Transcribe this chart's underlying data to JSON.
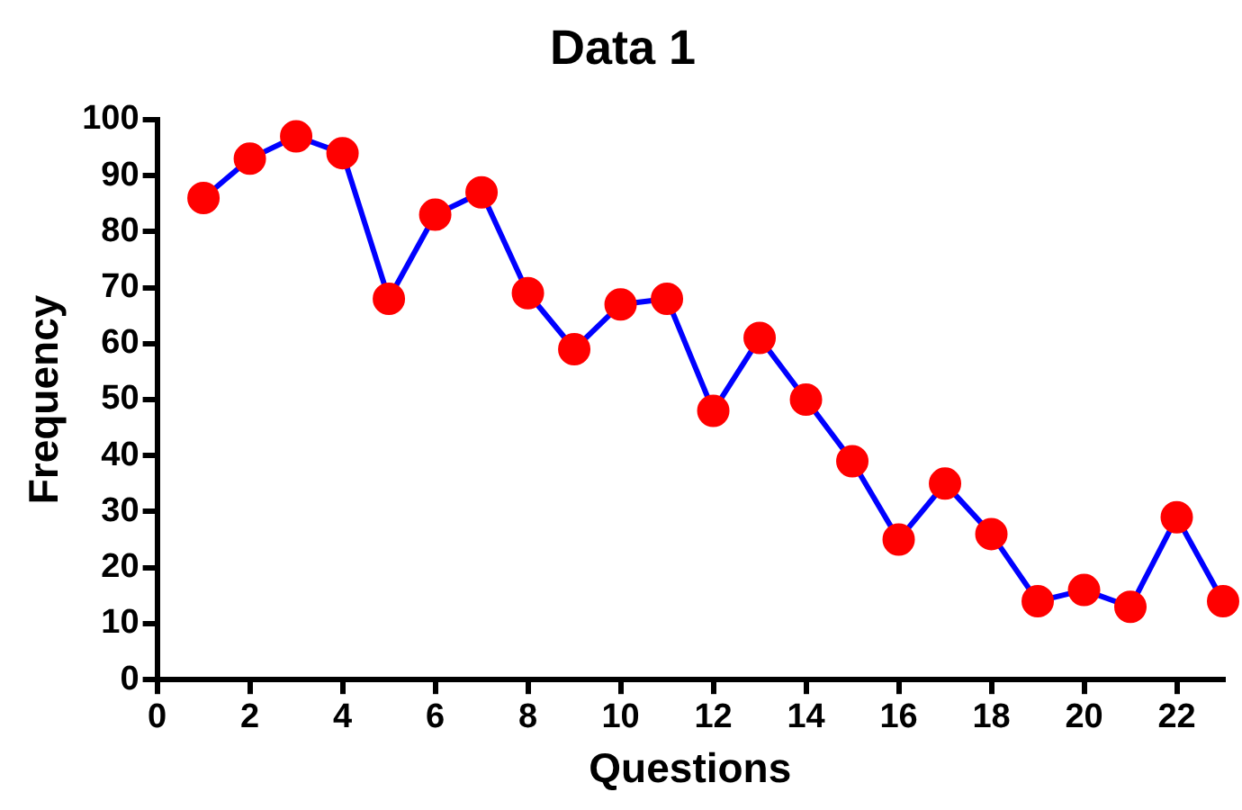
{
  "chart_data": {
    "type": "line",
    "title": "Data 1",
    "xlabel": "Questions",
    "ylabel": "Frequency",
    "x": [
      1,
      2,
      3,
      4,
      5,
      6,
      7,
      8,
      9,
      10,
      11,
      12,
      13,
      14,
      15,
      16,
      17,
      18,
      19,
      20,
      21,
      22,
      23
    ],
    "series": [
      {
        "color": "#0000ff",
        "colors": [
          "#ff0000",
          "#ff0000",
          "#ff0000",
          "#ff0000",
          "#ff0000",
          "#ff0000",
          "#ff0000",
          "#ff0000",
          "#ff0000",
          "#ff0000",
          "#ff0000",
          "#ff0000",
          "#ff0000",
          "#ff0000",
          "#ff0000",
          "#ff0000",
          "#ff0000",
          "#ff0000",
          "#ff0000",
          "#ff0000",
          "#ff0000",
          "#ff0000",
          "#ff0000"
        ],
        "values": [
          86,
          93,
          97,
          94,
          68,
          83,
          87,
          69,
          59,
          67,
          68,
          48,
          61,
          50,
          39,
          25,
          35,
          26,
          14,
          16,
          13,
          29,
          14
        ]
      }
    ],
    "xlim": [
      0,
      23
    ],
    "xticks": [
      0,
      2,
      4,
      6,
      8,
      10,
      12,
      14,
      16,
      18,
      20,
      22
    ],
    "ylim": [
      0,
      100
    ],
    "yticks": [
      0,
      10,
      20,
      30,
      40,
      50,
      60,
      70,
      80,
      90,
      100
    ],
    "grid": false,
    "legend": false,
    "marker": "circle",
    "line_style": "solid"
  }
}
